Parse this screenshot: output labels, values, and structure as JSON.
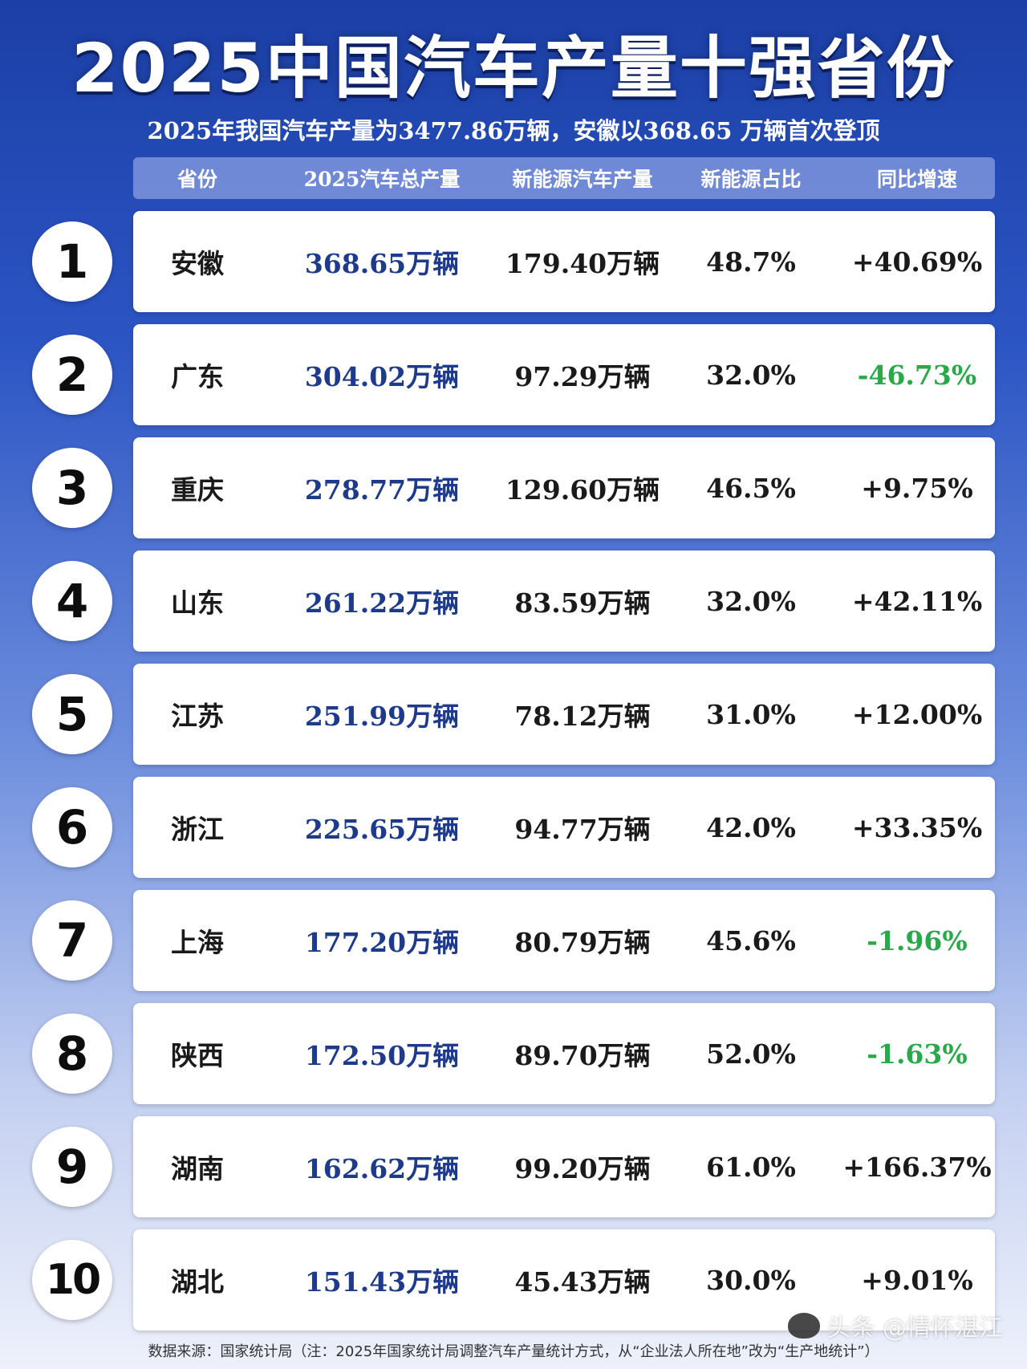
{
  "header": {
    "title": "2025中国汽车产量十强省份",
    "subtitle": "2025年我国汽车产量为3477.86万辆，安徽以368.65 万辆首次登顶"
  },
  "chart_data": {
    "type": "table",
    "columns": [
      "省份",
      "2025汽车总产量",
      "新能源汽车产量",
      "新能源占比",
      "同比增速"
    ],
    "rows": [
      {
        "rank": "1",
        "province": "安徽",
        "total": "368.65万辆",
        "nev": "179.40万辆",
        "share": "48.7%",
        "growth": "+40.69%"
      },
      {
        "rank": "2",
        "province": "广东",
        "total": "304.02万辆",
        "nev": "97.29万辆",
        "share": "32.0%",
        "growth": "-46.73%"
      },
      {
        "rank": "3",
        "province": "重庆",
        "total": "278.77万辆",
        "nev": "129.60万辆",
        "share": "46.5%",
        "growth": "+9.75%"
      },
      {
        "rank": "4",
        "province": "山东",
        "total": "261.22万辆",
        "nev": "83.59万辆",
        "share": "32.0%",
        "growth": "+42.11%"
      },
      {
        "rank": "5",
        "province": "江苏",
        "total": "251.99万辆",
        "nev": "78.12万辆",
        "share": "31.0%",
        "growth": "+12.00%"
      },
      {
        "rank": "6",
        "province": "浙江",
        "total": "225.65万辆",
        "nev": "94.77万辆",
        "share": "42.0%",
        "growth": "+33.35%"
      },
      {
        "rank": "7",
        "province": "上海",
        "total": "177.20万辆",
        "nev": "80.79万辆",
        "share": "45.6%",
        "growth": "-1.96%"
      },
      {
        "rank": "8",
        "province": "陕西",
        "total": "172.50万辆",
        "nev": "89.70万辆",
        "share": "52.0%",
        "growth": "-1.63%"
      },
      {
        "rank": "9",
        "province": "湖南",
        "total": "162.62万辆",
        "nev": "99.20万辆",
        "share": "61.0%",
        "growth": "+166.37%"
      },
      {
        "rank": "10",
        "province": "湖北",
        "total": "151.43万辆",
        "nev": "45.43万辆",
        "share": "30.0%",
        "growth": "+9.01%"
      }
    ]
  },
  "footer": {
    "source": "数据来源：国家统计局（注：2025年国家统计局调整汽车产量统计方式，从“企业法人所在地”改为“生产地统计”）"
  },
  "watermark": {
    "text": "头条 @情怀湛江"
  },
  "colors": {
    "positive": "#1a1a1a",
    "negative": "#2aa84a",
    "total": "#1e3a8a"
  }
}
